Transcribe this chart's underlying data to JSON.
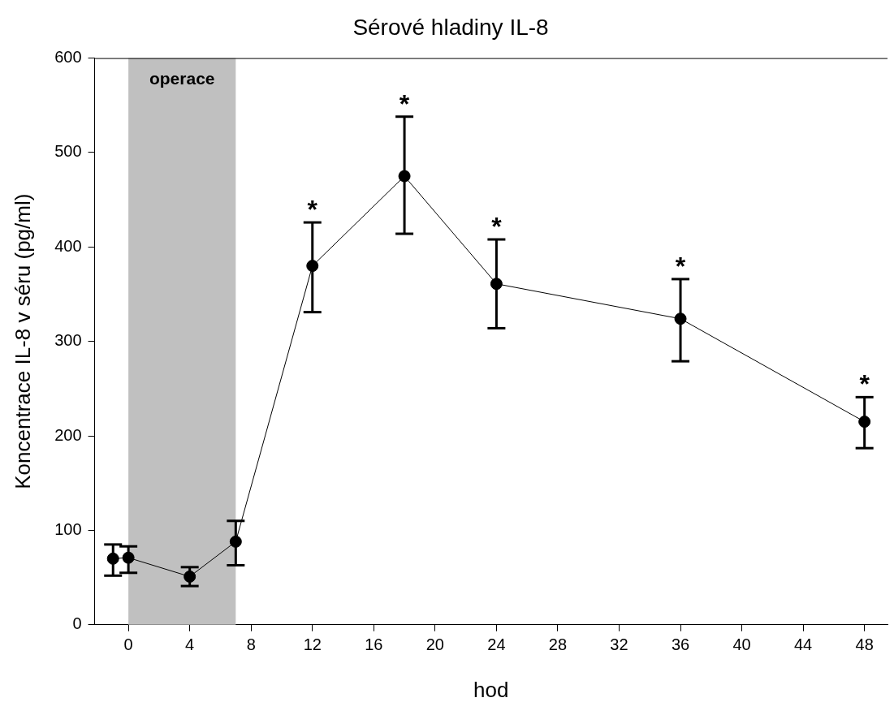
{
  "chart_data": {
    "type": "line",
    "title": "Sérové hladiny IL-8",
    "xlabel": "hod",
    "ylabel": "Koncentrace IL-8 v séru (pg/ml)",
    "x": [
      -1,
      0,
      4,
      7,
      12,
      18,
      24,
      36,
      48
    ],
    "series": [
      {
        "color": "#000000",
        "values": [
          70,
          71,
          51,
          88,
          380,
          475,
          361,
          324,
          215
        ],
        "errors": [
          [
            52,
            85
          ],
          [
            55,
            83
          ],
          [
            41,
            61
          ],
          [
            63,
            110
          ],
          [
            331,
            426
          ],
          [
            414,
            538
          ],
          [
            314,
            408
          ],
          [
            279,
            366
          ],
          [
            187,
            241
          ]
        ]
      }
    ],
    "xlim": [
      -2.2,
      49.5
    ],
    "xticks": [
      0,
      4,
      8,
      12,
      16,
      20,
      24,
      28,
      32,
      36,
      40,
      44,
      48
    ],
    "ylim": [
      0,
      600
    ],
    "yticks": [
      0,
      100,
      200,
      300,
      400,
      500,
      600
    ],
    "bands": [
      {
        "axis": "x",
        "from": 0,
        "to": 7,
        "label": "operace",
        "color": "#c0c0c0"
      }
    ],
    "annotations": [
      {
        "text": "*",
        "x": 12,
        "y": 426
      },
      {
        "text": "*",
        "x": 18,
        "y": 538
      },
      {
        "text": "*",
        "x": 24,
        "y": 408
      },
      {
        "text": "*",
        "x": 36,
        "y": 366
      },
      {
        "text": "*",
        "x": 48,
        "y": 241
      }
    ],
    "grid": false,
    "legend": false,
    "marker": "circle",
    "line_style": "solid"
  }
}
